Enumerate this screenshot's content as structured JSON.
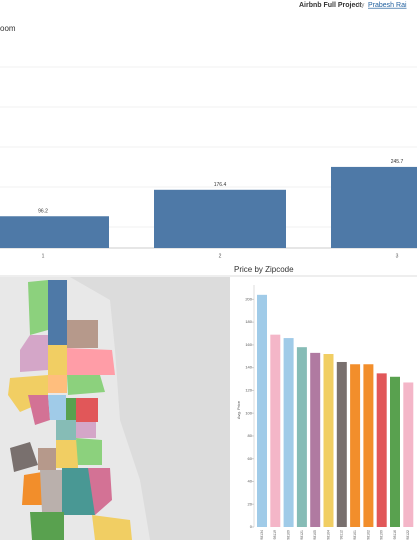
{
  "header": {
    "title": "Airbnb Full Project",
    "by": "by",
    "author": "Prabesh Rai"
  },
  "chart_data": [
    {
      "type": "bar",
      "title": "oom",
      "categories": [
        "1",
        "2",
        "3"
      ],
      "values": [
        96.2,
        176.4,
        245.7
      ],
      "color": "#4e79a7"
    },
    {
      "type": "bar",
      "title": "Price by Zipcode",
      "y_label": "Avg. Price",
      "categories": [
        "98134",
        "98119",
        "98109",
        "98121",
        "98105",
        "98104",
        "98112",
        "98101",
        "98102",
        "98199",
        "98116",
        "98122"
      ],
      "values": [
        204,
        169,
        166,
        158,
        153,
        152,
        145,
        143,
        143,
        135,
        132,
        127
      ],
      "colors": [
        "#a0cbe8",
        "#f4b6c8",
        "#a0cbe8",
        "#86bcb6",
        "#b07aa1",
        "#f1ce63",
        "#79706e",
        "#f28e2b",
        "#f28e2b",
        "#e15759",
        "#59a14f",
        "#f4b6c8"
      ],
      "ylim": [
        0,
        210
      ],
      "yticks": [
        0,
        20,
        40,
        60,
        80,
        100,
        120,
        140,
        160,
        180,
        200
      ]
    }
  ]
}
